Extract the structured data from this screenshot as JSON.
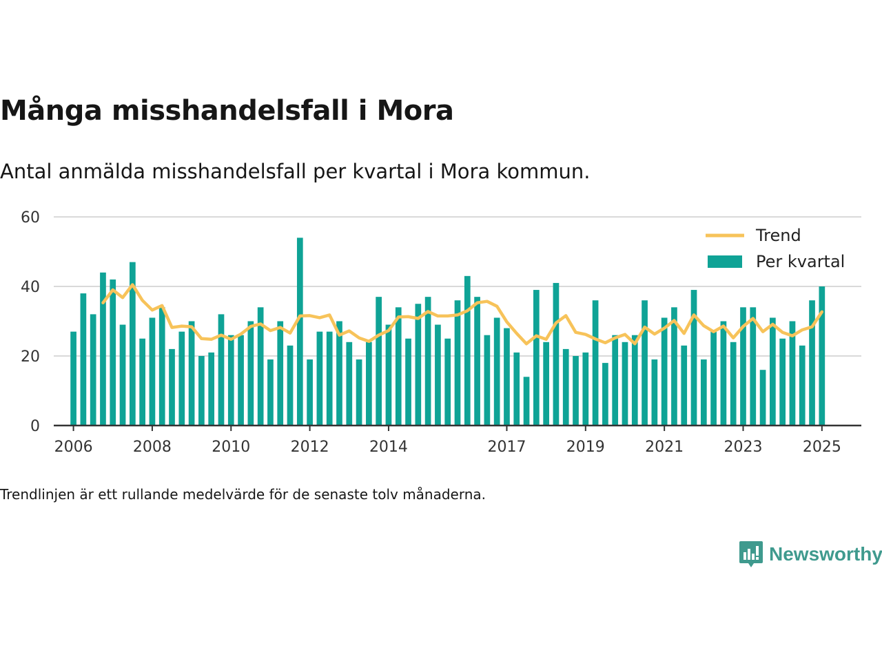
{
  "title": "Många misshandelsfall i Mora",
  "subtitle": "Antal anmälda misshandelsfall per kvartal i Mora kommun.",
  "footnote": "Trendlinjen är ett rullande medelvärde för de senaste tolv månaderna.",
  "brand": {
    "name": "Newsworthy",
    "icon": "newsworthy-logo-icon",
    "color": "#3f9a8e"
  },
  "colors": {
    "bar": "#0fa396",
    "trend": "#f7c35a",
    "grid": "#d9d9d9",
    "axis": "#333333"
  },
  "chart_data": {
    "type": "bar",
    "title": "",
    "xlabel": "",
    "ylabel": "",
    "ylim": [
      0,
      60
    ],
    "yticks": [
      0,
      20,
      40,
      60
    ],
    "xlim": [
      2005.5,
      2026.0
    ],
    "xticks": [
      {
        "label": "2006",
        "x": 2006.0
      },
      {
        "label": "2008",
        "x": 2008.0
      },
      {
        "label": "2010",
        "x": 2010.0
      },
      {
        "label": "2012",
        "x": 2012.0
      },
      {
        "label": "2014",
        "x": 2014.0
      },
      {
        "label": "2017",
        "x": 2017.0
      },
      {
        "label": "2019",
        "x": 2019.0
      },
      {
        "label": "2021",
        "x": 2021.0
      },
      {
        "label": "2023",
        "x": 2023.0
      },
      {
        "label": "2025",
        "x": 2025.0
      }
    ],
    "grid": true,
    "legend": {
      "position": "top-right",
      "entries": [
        "Trend",
        "Per kvartal"
      ]
    },
    "series": [
      {
        "name": "Per kvartal",
        "type": "bar",
        "x": [
          2006.0,
          2006.25,
          2006.5,
          2006.75,
          2007.0,
          2007.25,
          2007.5,
          2007.75,
          2008.0,
          2008.25,
          2008.5,
          2008.75,
          2009.0,
          2009.25,
          2009.5,
          2009.75,
          2010.0,
          2010.25,
          2010.5,
          2010.75,
          2011.0,
          2011.25,
          2011.5,
          2011.75,
          2012.0,
          2012.25,
          2012.5,
          2012.75,
          2013.0,
          2013.25,
          2013.5,
          2013.75,
          2014.0,
          2014.25,
          2014.5,
          2014.75,
          2015.0,
          2015.25,
          2015.5,
          2015.75,
          2016.0,
          2016.25,
          2016.5,
          2016.75,
          2017.0,
          2017.25,
          2017.5,
          2017.75,
          2018.0,
          2018.25,
          2018.5,
          2018.75,
          2019.0,
          2019.25,
          2019.5,
          2019.75,
          2020.0,
          2020.25,
          2020.5,
          2020.75,
          2021.0,
          2021.25,
          2021.5,
          2021.75,
          2022.0,
          2022.25,
          2022.5,
          2022.75,
          2023.0,
          2023.25,
          2023.5,
          2023.75,
          2024.0,
          2024.25,
          2024.5,
          2024.75,
          2025.0
        ],
        "values": [
          27,
          38,
          32,
          44,
          42,
          29,
          47,
          25,
          31,
          34,
          22,
          27,
          30,
          20,
          21,
          32,
          26,
          26,
          30,
          34,
          19,
          30,
          23,
          54,
          19,
          27,
          27,
          30,
          24,
          19,
          24,
          37,
          29,
          34,
          25,
          35,
          37,
          29,
          25,
          36,
          43,
          37,
          26,
          31,
          28,
          21,
          14,
          39,
          24,
          41,
          22,
          20,
          21,
          36,
          18,
          26,
          24,
          26,
          36,
          19,
          31,
          34,
          23,
          39,
          19,
          27,
          30,
          24,
          34,
          34,
          16,
          31,
          25,
          30,
          23,
          36,
          40
        ]
      },
      {
        "name": "Trend",
        "type": "line",
        "x": [
          2006.75,
          2007.0,
          2007.25,
          2007.5,
          2007.75,
          2008.0,
          2008.25,
          2008.5,
          2008.75,
          2009.0,
          2009.25,
          2009.5,
          2009.75,
          2010.0,
          2010.25,
          2010.5,
          2010.75,
          2011.0,
          2011.25,
          2011.5,
          2011.75,
          2012.0,
          2012.25,
          2012.5,
          2012.75,
          2013.0,
          2013.25,
          2013.5,
          2013.75,
          2014.0,
          2014.25,
          2014.5,
          2014.75,
          2015.0,
          2015.25,
          2015.5,
          2015.75,
          2016.0,
          2016.25,
          2016.5,
          2016.75,
          2017.0,
          2017.25,
          2017.5,
          2017.75,
          2018.0,
          2018.25,
          2018.5,
          2018.75,
          2019.0,
          2019.25,
          2019.5,
          2019.75,
          2020.0,
          2020.25,
          2020.5,
          2020.75,
          2021.0,
          2021.25,
          2021.5,
          2021.75,
          2022.0,
          2022.25,
          2022.5,
          2022.75,
          2023.0,
          2023.25,
          2023.5,
          2023.75,
          2024.0,
          2024.25,
          2024.5,
          2024.75,
          2025.0
        ],
        "values": [
          35.3,
          39.0,
          36.8,
          40.5,
          36.0,
          33.2,
          34.5,
          28.2,
          28.6,
          28.4,
          25.0,
          24.8,
          26.0,
          24.8,
          26.3,
          28.5,
          29.2,
          27.3,
          28.2,
          26.6,
          31.5,
          31.6,
          31.0,
          31.8,
          26.0,
          27.2,
          25.2,
          24.2,
          26.0,
          27.3,
          31.2,
          31.3,
          30.8,
          32.8,
          31.5,
          31.5,
          31.8,
          33.0,
          35.3,
          35.7,
          34.3,
          29.8,
          26.5,
          23.5,
          25.8,
          24.8,
          29.5,
          31.6,
          26.8,
          26.2,
          24.9,
          23.8,
          25.2,
          26.2,
          23.5,
          28.3,
          26.3,
          28.0,
          30.2,
          26.5,
          31.8,
          28.7,
          27.0,
          28.6,
          25.2,
          28.5,
          30.8,
          27.0,
          29.1,
          26.8,
          25.8,
          27.5,
          28.4,
          32.7
        ]
      }
    ]
  }
}
